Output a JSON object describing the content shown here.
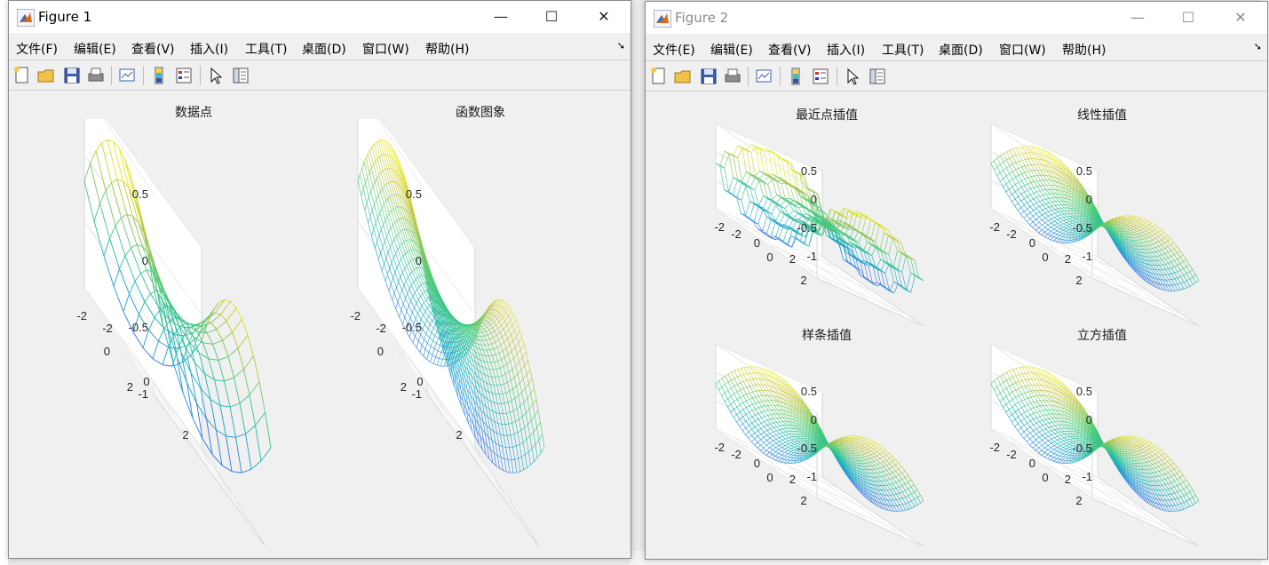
{
  "figure1": {
    "title": "Figure 1",
    "menu": [
      "文件(F)",
      "编辑(E)",
      "查看(V)",
      "插入(I)",
      "工具(T)",
      "桌面(D)",
      "窗口(W)",
      "帮助(H)"
    ],
    "plots": [
      {
        "title": "数据点",
        "mesh": "coarse"
      },
      {
        "title": "函数图象",
        "mesh": "fine"
      }
    ],
    "z_ticks": [
      "0.5",
      "0",
      "-0.5",
      "-1"
    ],
    "x_ticks": [
      "2",
      "0",
      "-2"
    ],
    "y_ticks": [
      "-2",
      "0",
      "2"
    ]
  },
  "figure2": {
    "title": "Figure 2",
    "menu": [
      "文件(E)",
      "编辑(E)",
      "查看(V)",
      "插入(I)",
      "工具(T)",
      "桌面(D)",
      "窗口(W)",
      "帮助(H)"
    ],
    "plots": [
      {
        "title": "最近点插值",
        "mesh": "nearest"
      },
      {
        "title": "线性插值",
        "mesh": "fine"
      },
      {
        "title": "样条插值",
        "mesh": "fine"
      },
      {
        "title": "立方插值",
        "mesh": "fine"
      }
    ],
    "z_ticks": [
      "0.5",
      "0",
      "-0.5",
      "-1"
    ],
    "x_ticks": [
      "2",
      "0",
      "-2"
    ],
    "y_ticks": [
      "-2",
      "0",
      "2"
    ]
  },
  "window_buttons": {
    "minimize": "—",
    "maximize": "☐",
    "close": "✕"
  },
  "toolbar_icons": [
    "new-figure-icon",
    "open-file-icon",
    "save-icon",
    "print-icon",
    "link-plot-icon",
    "colorbar-icon",
    "legend-icon",
    "pointer-icon",
    "property-editor-icon"
  ],
  "colors": {
    "surface_low": "#440154",
    "surface_high": "#fde725"
  }
}
